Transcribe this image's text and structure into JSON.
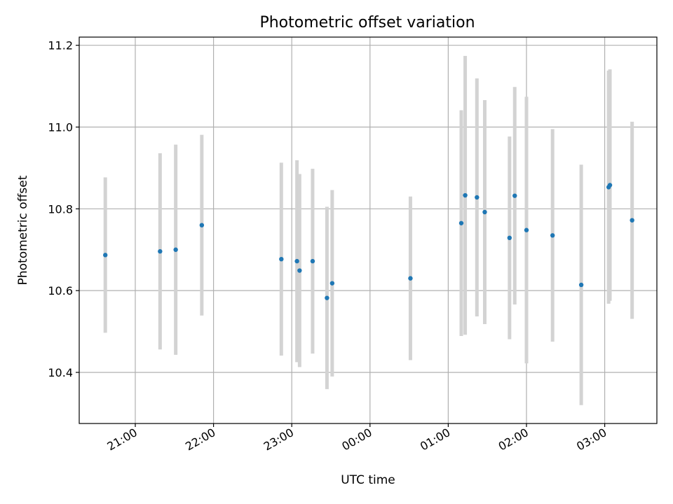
{
  "chart_data": {
    "type": "scatter",
    "title": "Photometric offset variation",
    "xlabel": "UTC time",
    "ylabel": "Photometric offset",
    "xlim": [
      "20:17",
      "03:40"
    ],
    "ylim": [
      10.275,
      11.22
    ],
    "grid": true,
    "x_ticks": [
      "21:00",
      "22:00",
      "23:00",
      "00:00",
      "01:00",
      "02:00",
      "03:00"
    ],
    "y_ticks": [
      10.4,
      10.6,
      10.8,
      11.0,
      11.2
    ],
    "y_tick_labels": [
      "10.4",
      "10.6",
      "10.8",
      "11.0",
      "11.2"
    ],
    "colors": {
      "points": "#1f77b4",
      "error_bars": "#d3d3d3"
    },
    "series": [
      {
        "points": [
          {
            "x": "20:37",
            "y": 10.687,
            "err": 0.19
          },
          {
            "x": "21:19",
            "y": 10.696,
            "err": 0.24
          },
          {
            "x": "21:31",
            "y": 10.7,
            "err": 0.257
          },
          {
            "x": "21:51",
            "y": 10.76,
            "err": 0.221
          },
          {
            "x": "22:52",
            "y": 10.677,
            "err": 0.236
          },
          {
            "x": "23:04",
            "y": 10.672,
            "err": 0.247
          },
          {
            "x": "23:06",
            "y": 10.649,
            "err": 0.236
          },
          {
            "x": "23:16",
            "y": 10.672,
            "err": 0.226
          },
          {
            "x": "23:27",
            "y": 10.582,
            "err": 0.223
          },
          {
            "x": "23:31",
            "y": 10.618,
            "err": 0.228
          },
          {
            "x": "00:31",
            "y": 10.63,
            "err": 0.2
          },
          {
            "x": "01:10",
            "y": 10.765,
            "err": 0.276
          },
          {
            "x": "01:13",
            "y": 10.833,
            "err": 0.341
          },
          {
            "x": "01:22",
            "y": 10.828,
            "err": 0.291
          },
          {
            "x": "01:28",
            "y": 10.792,
            "err": 0.274
          },
          {
            "x": "01:47",
            "y": 10.729,
            "err": 0.248
          },
          {
            "x": "01:51",
            "y": 10.832,
            "err": 0.266
          },
          {
            "x": "02:00",
            "y": 10.748,
            "err": 0.326
          },
          {
            "x": "02:20",
            "y": 10.735,
            "err": 0.26
          },
          {
            "x": "02:42",
            "y": 10.614,
            "err": 0.294
          },
          {
            "x": "03:03",
            "y": 10.853,
            "err": 0.285
          },
          {
            "x": "03:04",
            "y": 10.858,
            "err": 0.283
          },
          {
            "x": "03:21",
            "y": 10.772,
            "err": 0.241
          }
        ]
      }
    ]
  }
}
